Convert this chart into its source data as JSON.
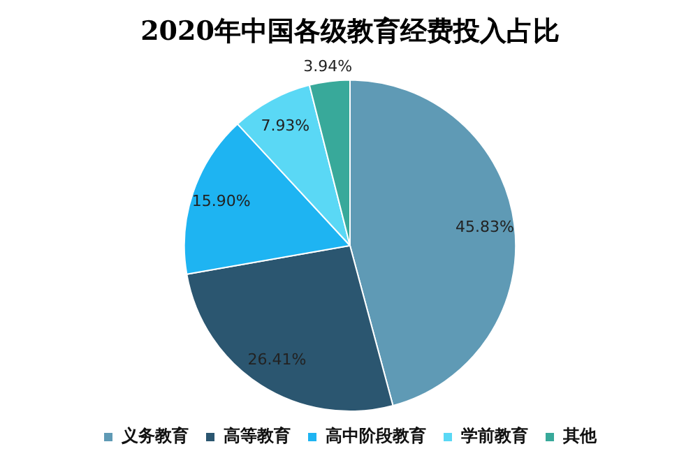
{
  "chart_data": {
    "type": "pie",
    "title": "2020年中国各级教育经费投入占比",
    "categories": [
      "义务教育",
      "高等教育",
      "高中阶段教育",
      "学前教育",
      "其他"
    ],
    "values": [
      45.83,
      26.41,
      15.9,
      7.93,
      3.94
    ],
    "colors": [
      "#5f9ab5",
      "#2b5670",
      "#1eb4f2",
      "#5ad8f5",
      "#38a99a"
    ],
    "value_labels": [
      "45.83%",
      "26.41%",
      "15.90%",
      "7.93%",
      "3.94%"
    ],
    "legend": "bottom"
  }
}
